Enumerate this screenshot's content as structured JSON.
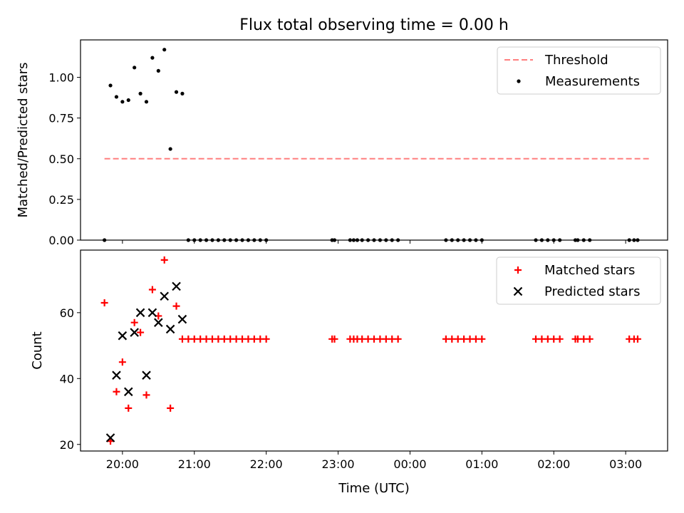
{
  "title": "Flux total observing time = 0.00 h",
  "chart_data": [
    {
      "type": "scatter",
      "xlabel": "",
      "ylabel": "Matched/Predicted stars",
      "xlim": [
        "19:25",
        "03:35"
      ],
      "ylim": [
        0,
        1.23
      ],
      "yticks": [
        0,
        0.25,
        0.5,
        0.75,
        1.0
      ],
      "ytick_labels": [
        "0.00",
        "0.25",
        "0.50",
        "0.75",
        "1.00"
      ],
      "x_ticks": [
        "20:00",
        "21:00",
        "22:00",
        "23:00",
        "00:00",
        "01:00",
        "02:00",
        "03:00"
      ],
      "show_xtick_labels": false,
      "grid": false,
      "legend": "top-right",
      "legend_entries": [
        "Threshold",
        "Measurements"
      ],
      "series": [
        {
          "name": "Threshold",
          "style": "dashed-line",
          "color": "#ff7f7f",
          "points": [
            [
              "19:45",
              0.5
            ],
            [
              "03:20",
              0.5
            ]
          ]
        },
        {
          "name": "Measurements",
          "style": "dot",
          "color": "#000000",
          "points": [
            [
              "19:45",
              0.0
            ],
            [
              "19:50",
              0.95
            ],
            [
              "19:55",
              0.88
            ],
            [
              "20:00",
              0.85
            ],
            [
              "20:05",
              0.86
            ],
            [
              "20:10",
              1.06
            ],
            [
              "20:15",
              0.9
            ],
            [
              "20:20",
              0.85
            ],
            [
              "20:25",
              1.12
            ],
            [
              "20:30",
              1.04
            ],
            [
              "20:35",
              1.17
            ],
            [
              "20:40",
              0.56
            ],
            [
              "20:45",
              0.91
            ],
            [
              "20:50",
              0.9
            ],
            [
              "20:55",
              0.0
            ],
            [
              "21:00",
              0.0
            ],
            [
              "21:05",
              0.0
            ],
            [
              "21:10",
              0.0
            ],
            [
              "21:15",
              0.0
            ],
            [
              "21:20",
              0.0
            ],
            [
              "21:25",
              0.0
            ],
            [
              "21:30",
              0.0
            ],
            [
              "21:35",
              0.0
            ],
            [
              "21:40",
              0.0
            ],
            [
              "21:45",
              0.0
            ],
            [
              "21:50",
              0.0
            ],
            [
              "21:55",
              0.0
            ],
            [
              "22:00",
              0.0
            ],
            [
              "22:55",
              0.0
            ],
            [
              "22:57",
              0.0
            ],
            [
              "23:10",
              0.0
            ],
            [
              "23:13",
              0.0
            ],
            [
              "23:16",
              0.0
            ],
            [
              "23:20",
              0.0
            ],
            [
              "23:25",
              0.0
            ],
            [
              "23:30",
              0.0
            ],
            [
              "23:35",
              0.0
            ],
            [
              "23:40",
              0.0
            ],
            [
              "23:45",
              0.0
            ],
            [
              "23:50",
              0.0
            ],
            [
              "00:30",
              0.0
            ],
            [
              "00:35",
              0.0
            ],
            [
              "00:40",
              0.0
            ],
            [
              "00:45",
              0.0
            ],
            [
              "00:50",
              0.0
            ],
            [
              "00:55",
              0.0
            ],
            [
              "01:00",
              0.0
            ],
            [
              "01:45",
              0.0
            ],
            [
              "01:50",
              0.0
            ],
            [
              "01:55",
              0.0
            ],
            [
              "02:00",
              0.0
            ],
            [
              "02:05",
              0.0
            ],
            [
              "02:18",
              0.0
            ],
            [
              "02:20",
              0.0
            ],
            [
              "02:25",
              0.0
            ],
            [
              "02:30",
              0.0
            ],
            [
              "03:03",
              0.0
            ],
            [
              "03:07",
              0.0
            ],
            [
              "03:10",
              0.0
            ]
          ]
        }
      ]
    },
    {
      "type": "scatter",
      "xlabel": "Time (UTC)",
      "ylabel": "Count",
      "xlim": [
        "19:25",
        "03:35"
      ],
      "ylim": [
        18,
        79
      ],
      "yticks": [
        20,
        40,
        60
      ],
      "ytick_labels": [
        "20",
        "40",
        "60"
      ],
      "x_ticks": [
        "20:00",
        "21:00",
        "22:00",
        "23:00",
        "00:00",
        "01:00",
        "02:00",
        "03:00"
      ],
      "show_xtick_labels": true,
      "grid": false,
      "legend": "top-right",
      "legend_entries": [
        "Matched stars",
        "Predicted stars"
      ],
      "series": [
        {
          "name": "Matched stars",
          "style": "plus",
          "color": "#ff0000",
          "points": [
            [
              "19:45",
              63
            ],
            [
              "19:50",
              21
            ],
            [
              "19:55",
              36
            ],
            [
              "20:00",
              45
            ],
            [
              "20:05",
              31
            ],
            [
              "20:10",
              57
            ],
            [
              "20:15",
              54
            ],
            [
              "20:20",
              35
            ],
            [
              "20:25",
              67
            ],
            [
              "20:30",
              59
            ],
            [
              "20:35",
              76
            ],
            [
              "20:40",
              31
            ],
            [
              "20:45",
              62
            ],
            [
              "20:50",
              52
            ],
            [
              "20:55",
              52
            ],
            [
              "21:00",
              52
            ],
            [
              "21:05",
              52
            ],
            [
              "21:10",
              52
            ],
            [
              "21:15",
              52
            ],
            [
              "21:20",
              52
            ],
            [
              "21:25",
              52
            ],
            [
              "21:30",
              52
            ],
            [
              "21:35",
              52
            ],
            [
              "21:40",
              52
            ],
            [
              "21:45",
              52
            ],
            [
              "21:50",
              52
            ],
            [
              "21:55",
              52
            ],
            [
              "22:00",
              52
            ],
            [
              "22:55",
              52
            ],
            [
              "22:57",
              52
            ],
            [
              "23:10",
              52
            ],
            [
              "23:13",
              52
            ],
            [
              "23:16",
              52
            ],
            [
              "23:20",
              52
            ],
            [
              "23:25",
              52
            ],
            [
              "23:30",
              52
            ],
            [
              "23:35",
              52
            ],
            [
              "23:40",
              52
            ],
            [
              "23:45",
              52
            ],
            [
              "23:50",
              52
            ],
            [
              "00:30",
              52
            ],
            [
              "00:35",
              52
            ],
            [
              "00:40",
              52
            ],
            [
              "00:45",
              52
            ],
            [
              "00:50",
              52
            ],
            [
              "00:55",
              52
            ],
            [
              "01:00",
              52
            ],
            [
              "01:45",
              52
            ],
            [
              "01:50",
              52
            ],
            [
              "01:55",
              52
            ],
            [
              "02:00",
              52
            ],
            [
              "02:05",
              52
            ],
            [
              "02:18",
              52
            ],
            [
              "02:20",
              52
            ],
            [
              "02:25",
              52
            ],
            [
              "02:30",
              52
            ],
            [
              "03:03",
              52
            ],
            [
              "03:07",
              52
            ],
            [
              "03:10",
              52
            ]
          ]
        },
        {
          "name": "Predicted stars",
          "style": "x",
          "color": "#000000",
          "points": [
            [
              "19:50",
              22
            ],
            [
              "19:55",
              41
            ],
            [
              "20:00",
              53
            ],
            [
              "20:05",
              36
            ],
            [
              "20:10",
              54
            ],
            [
              "20:15",
              60
            ],
            [
              "20:20",
              41
            ],
            [
              "20:25",
              60
            ],
            [
              "20:30",
              57
            ],
            [
              "20:35",
              65
            ],
            [
              "20:40",
              55
            ],
            [
              "20:45",
              68
            ],
            [
              "20:50",
              58
            ]
          ]
        }
      ]
    }
  ]
}
